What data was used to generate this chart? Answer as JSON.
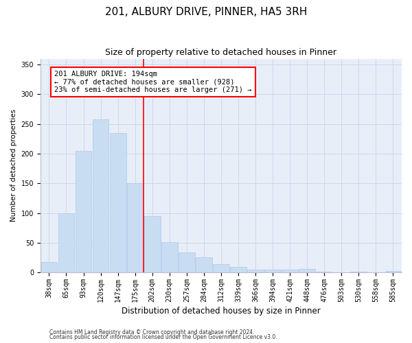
{
  "title1": "201, ALBURY DRIVE, PINNER, HA5 3RH",
  "title2": "Size of property relative to detached houses in Pinner",
  "xlabel": "Distribution of detached houses by size in Pinner",
  "ylabel": "Number of detached properties",
  "categories": [
    "38sqm",
    "65sqm",
    "93sqm",
    "120sqm",
    "147sqm",
    "175sqm",
    "202sqm",
    "230sqm",
    "257sqm",
    "284sqm",
    "312sqm",
    "339sqm",
    "366sqm",
    "394sqm",
    "421sqm",
    "448sqm",
    "476sqm",
    "503sqm",
    "530sqm",
    "558sqm",
    "585sqm"
  ],
  "values": [
    18,
    100,
    205,
    258,
    235,
    150,
    95,
    51,
    34,
    26,
    14,
    9,
    5,
    5,
    5,
    6,
    1,
    0,
    1,
    0,
    2
  ],
  "bar_color": "#c9ddf2",
  "bar_edge_color": "#aec8e8",
  "vline_color": "red",
  "annotation_text": "201 ALBURY DRIVE: 194sqm\n← 77% of detached houses are smaller (928)\n23% of semi-detached houses are larger (271) →",
  "annotation_box_color": "white",
  "annotation_box_edge": "red",
  "ylim": [
    0,
    360
  ],
  "yticks": [
    0,
    50,
    100,
    150,
    200,
    250,
    300,
    350
  ],
  "grid_color": "#cdd8ec",
  "background_color": "#e8eef8",
  "footnote1": "Contains HM Land Registry data © Crown copyright and database right 2024.",
  "footnote2": "Contains public sector information licensed under the Open Government Licence v3.0.",
  "title1_fontsize": 11,
  "title2_fontsize": 9,
  "xlabel_fontsize": 8.5,
  "ylabel_fontsize": 7.5,
  "tick_fontsize": 7,
  "annot_fontsize": 7.5,
  "footnote_fontsize": 5.5
}
